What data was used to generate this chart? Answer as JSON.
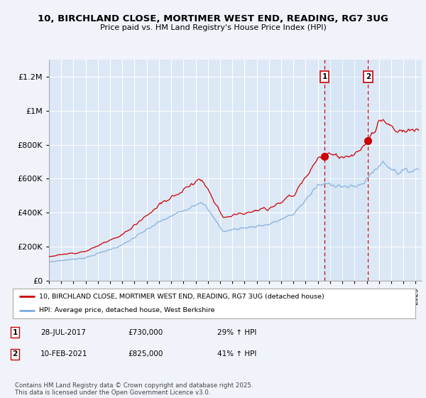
{
  "title_line1": "10, BIRCHLAND CLOSE, MORTIMER WEST END, READING, RG7 3UG",
  "title_line2": "Price paid vs. HM Land Registry's House Price Index (HPI)",
  "ylabel_ticks": [
    "£0",
    "£200K",
    "£400K",
    "£600K",
    "£800K",
    "£1M",
    "£1.2M"
  ],
  "ytick_values": [
    0,
    200000,
    400000,
    600000,
    800000,
    1000000,
    1200000
  ],
  "ylim": [
    0,
    1300000
  ],
  "xlim_start": 1995.0,
  "xlim_end": 2025.5,
  "background_color": "#f0f4fa",
  "plot_bg_color": "#dce8f5",
  "grid_color": "#ffffff",
  "red_line_color": "#cc0000",
  "blue_line_color": "#7aabdd",
  "marker1_x": 2017.55,
  "marker1_y": 730000,
  "marker2_x": 2021.11,
  "marker2_y": 825000,
  "marker1_label": "28-JUL-2017",
  "marker1_price": "£730,000",
  "marker1_hpi": "29% ↑ HPI",
  "marker2_label": "10-FEB-2021",
  "marker2_price": "£825,000",
  "marker2_hpi": "41% ↑ HPI",
  "legend_line1": "10, BIRCHLAND CLOSE, MORTIMER WEST END, READING, RG7 3UG (detached house)",
  "legend_line2": "HPI: Average price, detached house, West Berkshire",
  "footer": "Contains HM Land Registry data © Crown copyright and database right 2025.\nThis data is licensed under the Open Government Licence v3.0."
}
